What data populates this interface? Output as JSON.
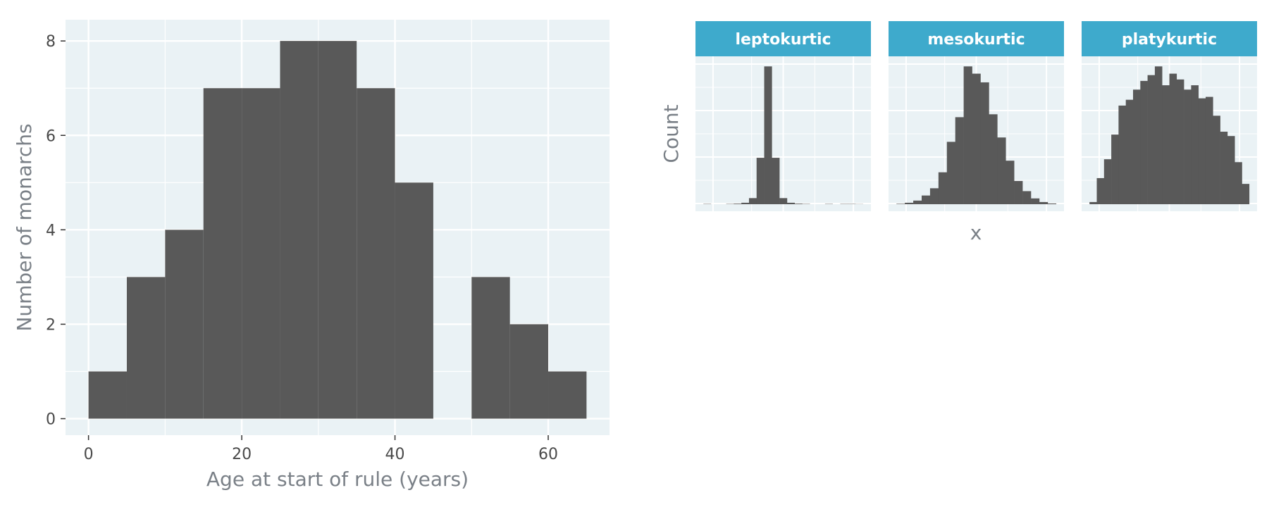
{
  "colors": {
    "panel_background": "#eaf2f5",
    "grid": "#ffffff",
    "bar_fill": "#595959",
    "strip_fill": "#3eaacc",
    "axis_text": "#4a4a4a",
    "title_text": "#7a8087"
  },
  "chart_data": [
    {
      "type": "bar",
      "subtype": "histogram",
      "xlabel": "Age at start of rule (years)",
      "ylabel": "Number of monarchs",
      "xlim": [
        -3,
        68
      ],
      "ylim": [
        -0.35,
        8.45
      ],
      "x_ticks": [
        0,
        20,
        40,
        60
      ],
      "y_ticks": [
        0,
        2,
        4,
        6,
        8
      ],
      "x_tick_labels": [
        "0",
        "20",
        "40",
        "60"
      ],
      "y_tick_labels": [
        "0",
        "2",
        "4",
        "6",
        "8"
      ],
      "bin_width": 5,
      "bins": [
        {
          "start": 0,
          "end": 5,
          "count": 1
        },
        {
          "start": 5,
          "end": 10,
          "count": 3
        },
        {
          "start": 10,
          "end": 15,
          "count": 4
        },
        {
          "start": 15,
          "end": 20,
          "count": 7
        },
        {
          "start": 20,
          "end": 25,
          "count": 7
        },
        {
          "start": 25,
          "end": 30,
          "count": 8
        },
        {
          "start": 30,
          "end": 35,
          "count": 8
        },
        {
          "start": 35,
          "end": 40,
          "count": 7
        },
        {
          "start": 40,
          "end": 45,
          "count": 5
        },
        {
          "start": 45,
          "end": 50,
          "count": 0
        },
        {
          "start": 50,
          "end": 55,
          "count": 3
        },
        {
          "start": 55,
          "end": 60,
          "count": 2
        },
        {
          "start": 60,
          "end": 65,
          "count": 1
        }
      ],
      "grid": true
    },
    {
      "type": "bar",
      "subtype": "faceted-histogram",
      "xlabel": "x",
      "ylabel": "Count",
      "x_tick_labels": [],
      "y_tick_labels": [],
      "grid": true,
      "panels": [
        {
          "strip": "leptokurtic",
          "counts": [
            0.2,
            0,
            0,
            0.2,
            0.4,
            1,
            4.2,
            32,
            95,
            32,
            4.2,
            1,
            0.4,
            0.2,
            0,
            0,
            0.2,
            0,
            0.2,
            0.2,
            0.1
          ]
        },
        {
          "strip": "mesokurtic",
          "counts": [
            0.3,
            1,
            2.5,
            6,
            11,
            22,
            43,
            60,
            95,
            90,
            84,
            62,
            46,
            30,
            16,
            9,
            4,
            1.5,
            0.5
          ]
        },
        {
          "strip": "platykurtic",
          "counts": [
            1.5,
            18,
            31,
            48,
            68,
            72,
            79,
            85,
            89,
            95,
            82,
            90,
            86,
            79,
            82,
            73,
            74,
            61,
            50,
            47,
            29,
            14
          ]
        }
      ]
    }
  ]
}
